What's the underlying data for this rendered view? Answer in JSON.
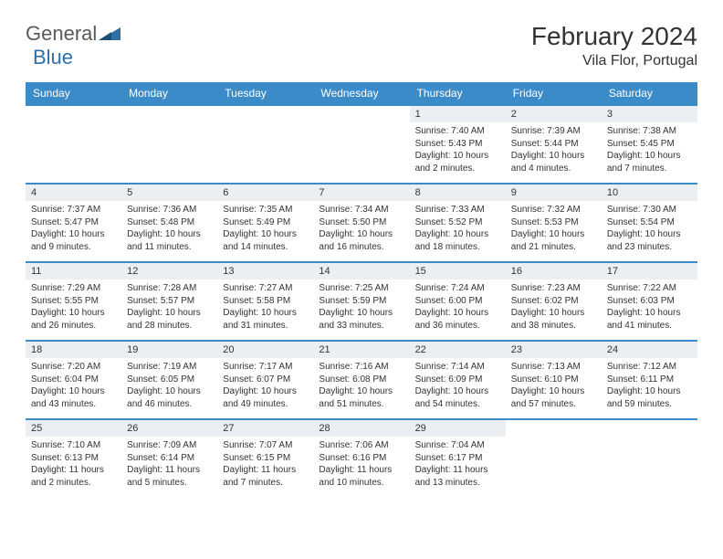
{
  "logo": {
    "text1": "General",
    "text2": "Blue"
  },
  "title": "February 2024",
  "location": "Vila Flor, Portugal",
  "colors": {
    "header_bg": "#3b8bc9",
    "header_text": "#ffffff",
    "daynum_bg": "#eceff1",
    "row_border": "#3b8bc9",
    "body_text": "#333333",
    "logo_gray": "#5a5a5a",
    "logo_blue": "#2f6fa8"
  },
  "day_headers": [
    "Sunday",
    "Monday",
    "Tuesday",
    "Wednesday",
    "Thursday",
    "Friday",
    "Saturday"
  ],
  "weeks": [
    [
      {
        "n": "",
        "sunrise": "",
        "sunset": "",
        "daylight": ""
      },
      {
        "n": "",
        "sunrise": "",
        "sunset": "",
        "daylight": ""
      },
      {
        "n": "",
        "sunrise": "",
        "sunset": "",
        "daylight": ""
      },
      {
        "n": "",
        "sunrise": "",
        "sunset": "",
        "daylight": ""
      },
      {
        "n": "1",
        "sunrise": "Sunrise: 7:40 AM",
        "sunset": "Sunset: 5:43 PM",
        "daylight": "Daylight: 10 hours and 2 minutes."
      },
      {
        "n": "2",
        "sunrise": "Sunrise: 7:39 AM",
        "sunset": "Sunset: 5:44 PM",
        "daylight": "Daylight: 10 hours and 4 minutes."
      },
      {
        "n": "3",
        "sunrise": "Sunrise: 7:38 AM",
        "sunset": "Sunset: 5:45 PM",
        "daylight": "Daylight: 10 hours and 7 minutes."
      }
    ],
    [
      {
        "n": "4",
        "sunrise": "Sunrise: 7:37 AM",
        "sunset": "Sunset: 5:47 PM",
        "daylight": "Daylight: 10 hours and 9 minutes."
      },
      {
        "n": "5",
        "sunrise": "Sunrise: 7:36 AM",
        "sunset": "Sunset: 5:48 PM",
        "daylight": "Daylight: 10 hours and 11 minutes."
      },
      {
        "n": "6",
        "sunrise": "Sunrise: 7:35 AM",
        "sunset": "Sunset: 5:49 PM",
        "daylight": "Daylight: 10 hours and 14 minutes."
      },
      {
        "n": "7",
        "sunrise": "Sunrise: 7:34 AM",
        "sunset": "Sunset: 5:50 PM",
        "daylight": "Daylight: 10 hours and 16 minutes."
      },
      {
        "n": "8",
        "sunrise": "Sunrise: 7:33 AM",
        "sunset": "Sunset: 5:52 PM",
        "daylight": "Daylight: 10 hours and 18 minutes."
      },
      {
        "n": "9",
        "sunrise": "Sunrise: 7:32 AM",
        "sunset": "Sunset: 5:53 PM",
        "daylight": "Daylight: 10 hours and 21 minutes."
      },
      {
        "n": "10",
        "sunrise": "Sunrise: 7:30 AM",
        "sunset": "Sunset: 5:54 PM",
        "daylight": "Daylight: 10 hours and 23 minutes."
      }
    ],
    [
      {
        "n": "11",
        "sunrise": "Sunrise: 7:29 AM",
        "sunset": "Sunset: 5:55 PM",
        "daylight": "Daylight: 10 hours and 26 minutes."
      },
      {
        "n": "12",
        "sunrise": "Sunrise: 7:28 AM",
        "sunset": "Sunset: 5:57 PM",
        "daylight": "Daylight: 10 hours and 28 minutes."
      },
      {
        "n": "13",
        "sunrise": "Sunrise: 7:27 AM",
        "sunset": "Sunset: 5:58 PM",
        "daylight": "Daylight: 10 hours and 31 minutes."
      },
      {
        "n": "14",
        "sunrise": "Sunrise: 7:25 AM",
        "sunset": "Sunset: 5:59 PM",
        "daylight": "Daylight: 10 hours and 33 minutes."
      },
      {
        "n": "15",
        "sunrise": "Sunrise: 7:24 AM",
        "sunset": "Sunset: 6:00 PM",
        "daylight": "Daylight: 10 hours and 36 minutes."
      },
      {
        "n": "16",
        "sunrise": "Sunrise: 7:23 AM",
        "sunset": "Sunset: 6:02 PM",
        "daylight": "Daylight: 10 hours and 38 minutes."
      },
      {
        "n": "17",
        "sunrise": "Sunrise: 7:22 AM",
        "sunset": "Sunset: 6:03 PM",
        "daylight": "Daylight: 10 hours and 41 minutes."
      }
    ],
    [
      {
        "n": "18",
        "sunrise": "Sunrise: 7:20 AM",
        "sunset": "Sunset: 6:04 PM",
        "daylight": "Daylight: 10 hours and 43 minutes."
      },
      {
        "n": "19",
        "sunrise": "Sunrise: 7:19 AM",
        "sunset": "Sunset: 6:05 PM",
        "daylight": "Daylight: 10 hours and 46 minutes."
      },
      {
        "n": "20",
        "sunrise": "Sunrise: 7:17 AM",
        "sunset": "Sunset: 6:07 PM",
        "daylight": "Daylight: 10 hours and 49 minutes."
      },
      {
        "n": "21",
        "sunrise": "Sunrise: 7:16 AM",
        "sunset": "Sunset: 6:08 PM",
        "daylight": "Daylight: 10 hours and 51 minutes."
      },
      {
        "n": "22",
        "sunrise": "Sunrise: 7:14 AM",
        "sunset": "Sunset: 6:09 PM",
        "daylight": "Daylight: 10 hours and 54 minutes."
      },
      {
        "n": "23",
        "sunrise": "Sunrise: 7:13 AM",
        "sunset": "Sunset: 6:10 PM",
        "daylight": "Daylight: 10 hours and 57 minutes."
      },
      {
        "n": "24",
        "sunrise": "Sunrise: 7:12 AM",
        "sunset": "Sunset: 6:11 PM",
        "daylight": "Daylight: 10 hours and 59 minutes."
      }
    ],
    [
      {
        "n": "25",
        "sunrise": "Sunrise: 7:10 AM",
        "sunset": "Sunset: 6:13 PM",
        "daylight": "Daylight: 11 hours and 2 minutes."
      },
      {
        "n": "26",
        "sunrise": "Sunrise: 7:09 AM",
        "sunset": "Sunset: 6:14 PM",
        "daylight": "Daylight: 11 hours and 5 minutes."
      },
      {
        "n": "27",
        "sunrise": "Sunrise: 7:07 AM",
        "sunset": "Sunset: 6:15 PM",
        "daylight": "Daylight: 11 hours and 7 minutes."
      },
      {
        "n": "28",
        "sunrise": "Sunrise: 7:06 AM",
        "sunset": "Sunset: 6:16 PM",
        "daylight": "Daylight: 11 hours and 10 minutes."
      },
      {
        "n": "29",
        "sunrise": "Sunrise: 7:04 AM",
        "sunset": "Sunset: 6:17 PM",
        "daylight": "Daylight: 11 hours and 13 minutes."
      },
      {
        "n": "",
        "sunrise": "",
        "sunset": "",
        "daylight": ""
      },
      {
        "n": "",
        "sunrise": "",
        "sunset": "",
        "daylight": ""
      }
    ]
  ]
}
